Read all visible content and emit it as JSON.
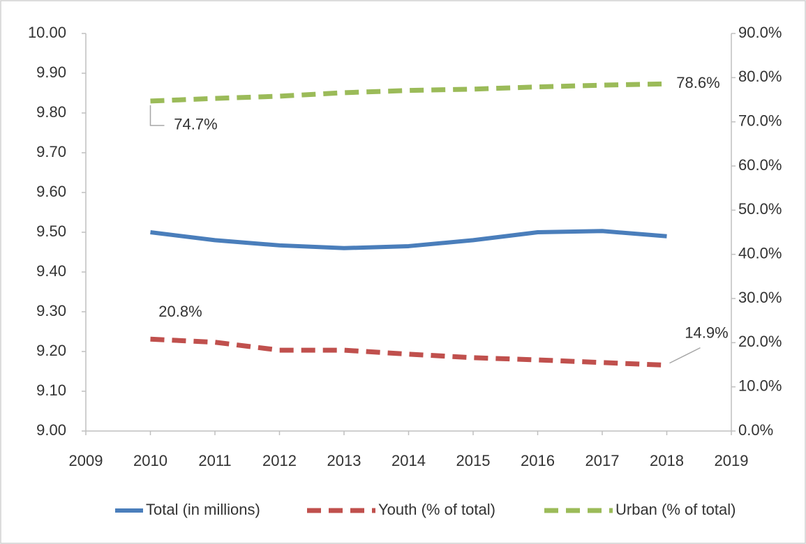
{
  "chart_data": {
    "type": "line",
    "x": [
      2010,
      2011,
      2012,
      2013,
      2014,
      2015,
      2016,
      2017,
      2018
    ],
    "xlim": [
      2009,
      2019
    ],
    "xticks": [
      2009,
      2010,
      2011,
      2012,
      2013,
      2014,
      2015,
      2016,
      2017,
      2018,
      2019
    ],
    "ylim": [
      9,
      10
    ],
    "yticks": [
      {
        "value": 9,
        "label": "9.00"
      },
      {
        "value": 9.1,
        "label": "9.10"
      },
      {
        "value": 9.2,
        "label": "9.20"
      },
      {
        "value": 9.3,
        "label": "9.30"
      },
      {
        "value": 9.4,
        "label": "9.40"
      },
      {
        "value": 9.5,
        "label": "9.50"
      },
      {
        "value": 9.6,
        "label": "9.60"
      },
      {
        "value": 9.7,
        "label": "9.70"
      },
      {
        "value": 9.8,
        "label": "9.80"
      },
      {
        "value": 9.9,
        "label": "9.90"
      },
      {
        "value": 10,
        "label": "10.00"
      }
    ],
    "y2lim": [
      0,
      90
    ],
    "y2ticks": [
      {
        "value": 0,
        "label": "0.0%"
      },
      {
        "value": 10,
        "label": "10.0%"
      },
      {
        "value": 20,
        "label": "20.0%"
      },
      {
        "value": 30,
        "label": "30.0%"
      },
      {
        "value": 40,
        "label": "40.0%"
      },
      {
        "value": 50,
        "label": "50.0%"
      },
      {
        "value": 60,
        "label": "60.0%"
      },
      {
        "value": 70,
        "label": "70.0%"
      },
      {
        "value": 80,
        "label": "80.0%"
      },
      {
        "value": 90,
        "label": "90.0%"
      }
    ],
    "grid": false,
    "legend": "bottom",
    "series": [
      {
        "name": "Total (in millions)",
        "color": "#4a7ebb",
        "line_style": "solid",
        "values": [
          9.5,
          9.48,
          9.467,
          9.46,
          9.465,
          9.48,
          9.5,
          9.503,
          9.49
        ]
      },
      {
        "name": "Youth (% of total)",
        "color": "#c0504d",
        "line_style": "dashed",
        "axis": "y2",
        "values": [
          20.8,
          20.1,
          18.3,
          18.3,
          17.4,
          16.6,
          16.1,
          15.5,
          14.9
        ],
        "value_labels": [
          "20.8%",
          null,
          null,
          null,
          null,
          null,
          null,
          null,
          "14.9%"
        ]
      },
      {
        "name": "Urban (% of total)",
        "color": "#9bbb59",
        "line_style": "dashed",
        "axis": "y2",
        "values": [
          74.7,
          75.3,
          75.8,
          76.6,
          77.1,
          77.4,
          77.9,
          78.3,
          78.6
        ],
        "value_labels": [
          "74.7%",
          null,
          null,
          null,
          null,
          null,
          null,
          null,
          "78.6%"
        ]
      }
    ]
  }
}
